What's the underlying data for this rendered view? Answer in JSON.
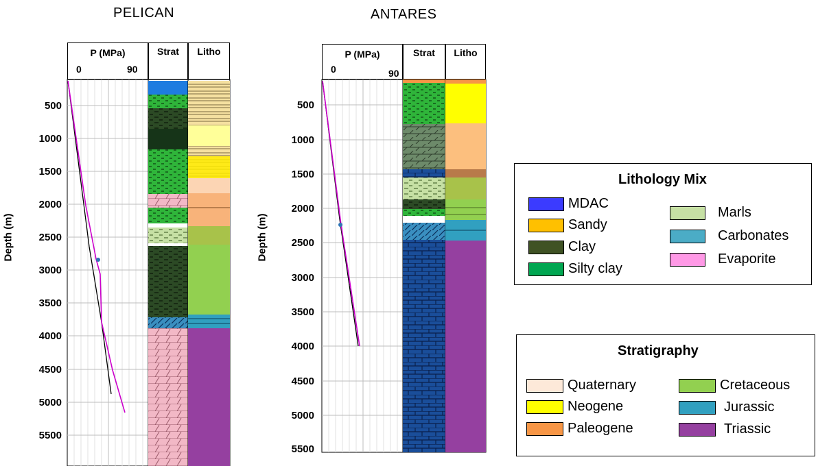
{
  "wells": [
    {
      "name": "PELICAN",
      "pressure_header": "P (MPa)",
      "p_min": "0",
      "p_max": "90",
      "strat_header": "Strat",
      "litho_header": "Litho",
      "y_axis_label": "Depth (m)",
      "depth_ticks": [
        "500",
        "1000",
        "1500",
        "2000",
        "2500",
        "3000",
        "3500",
        "4000",
        "4500",
        "5000",
        "5500"
      ]
    },
    {
      "name": "ANTARES",
      "pressure_header": "P (MPa)",
      "p_min": "0",
      "p_max": "90",
      "strat_header": "Strat",
      "litho_header": "Litho",
      "y_axis_label": "Depth (m)",
      "depth_ticks": [
        "500",
        "1000",
        "1500",
        "2000",
        "2500",
        "3000",
        "3500",
        "4000",
        "4500",
        "5000",
        "5500"
      ]
    }
  ],
  "lithology_legend": {
    "title": "Lithology Mix",
    "items": [
      {
        "label": "MDAC",
        "color": "#3b3bff"
      },
      {
        "label": "Sandy",
        "color": "#ffc000"
      },
      {
        "label": "Clay",
        "color": "#3f5224"
      },
      {
        "label": "Silty clay",
        "color": "#00a651"
      },
      {
        "label": "Marls",
        "color": "#c6e0a4"
      },
      {
        "label": "Carbonates",
        "color": "#4bacc6"
      },
      {
        "label": "Evaporite",
        "color": "#ff99e6"
      }
    ]
  },
  "stratigraphy_legend": {
    "title": "Stratigraphy",
    "items": [
      {
        "label": "Quaternary",
        "color": "#fde9d9"
      },
      {
        "label": "Neogene",
        "color": "#ffff00"
      },
      {
        "label": "Paleogene",
        "color": "#f79646"
      },
      {
        "label": "Cretaceous",
        "color": "#92d050"
      },
      {
        "label": "Jurassic",
        "color": "#31a0c0"
      },
      {
        "label": "Triassic",
        "color": "#9540a0"
      }
    ]
  }
}
